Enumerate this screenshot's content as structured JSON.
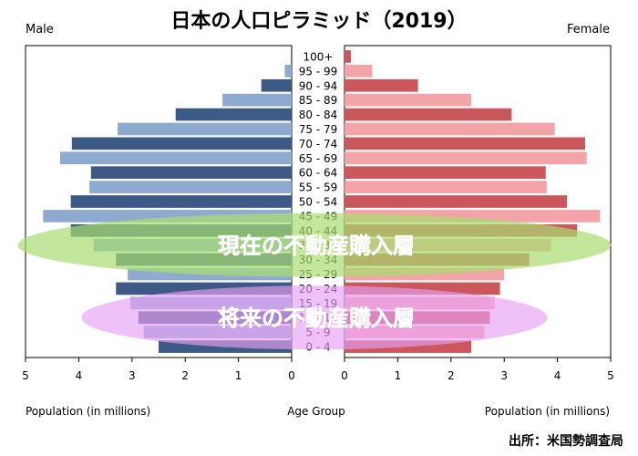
{
  "chart_data": {
    "type": "bar",
    "title": "日本の人口ピラミッド（2019）",
    "left_label": "Male",
    "right_label": "Female",
    "xlabel_left": "Population (in millions)",
    "xlabel_right": "Population (in millions)",
    "xlabel_center": "Age Group",
    "xlim": [
      0,
      5
    ],
    "xticks": [
      "0",
      "1",
      "2",
      "3",
      "4",
      "5"
    ],
    "categories": [
      "100+",
      "95 - 99",
      "90 - 94",
      "85 - 89",
      "80 - 84",
      "75 - 79",
      "70 - 74",
      "65 - 69",
      "60 - 64",
      "55 - 59",
      "50 - 54",
      "45 - 49",
      "40 - 44",
      "35 - 39",
      "30 - 34",
      "25 - 29",
      "20 - 24",
      "15 - 19",
      "10 - 14",
      "5 - 9",
      "0 - 4"
    ],
    "series": [
      {
        "side": "left",
        "values": [
          0.0,
          0.13,
          0.57,
          1.3,
          2.18,
          3.27,
          4.13,
          4.35,
          3.77,
          3.8,
          4.15,
          4.67,
          4.15,
          3.72,
          3.3,
          3.08,
          3.3,
          3.03,
          2.88,
          2.78,
          2.5
        ]
      },
      {
        "side": "right",
        "values": [
          0.12,
          0.52,
          1.38,
          2.38,
          3.14,
          3.95,
          4.52,
          4.55,
          3.78,
          3.8,
          4.18,
          4.8,
          4.37,
          3.88,
          3.47,
          3.0,
          2.92,
          2.82,
          2.73,
          2.63,
          2.38
        ]
      }
    ],
    "colors": {
      "male_dark": "#3d5a86",
      "male_light": "#8eaacf",
      "female_dark": "#c9575b",
      "female_light": "#f2a4a8"
    }
  },
  "overlays": [
    {
      "text": "現在の不動産購入層",
      "color": "#a8dd6f",
      "alpha": 0.7,
      "age_center": "35 - 39",
      "half_span_rows": 2.2,
      "width_frac": 0.93
    },
    {
      "text": "将来の不動産購入層",
      "color": "#e8a0f4",
      "alpha": 0.65,
      "age_center": "10 - 14",
      "half_span_rows": 2.2,
      "width_frac": 0.73
    }
  ],
  "source": "出所：米国勢調査局"
}
